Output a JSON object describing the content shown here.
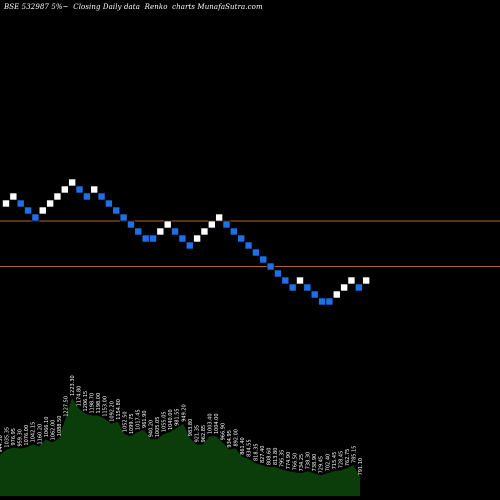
{
  "chart_data": {
    "type": "renko",
    "title": "BSE 532987 5%~  Closing Daily data  Renko  charts MunafaSutra.com",
    "colors": {
      "background": "#000000",
      "up_brick": "#ffffff",
      "down_brick": "#1f6fe8",
      "reference_line": "#b5652b",
      "volume_fill": "#0a3d0a",
      "volume_text": "#ffffff"
    },
    "bricks": [
      {
        "index": 0,
        "level": 0,
        "direction": "up"
      },
      {
        "index": 1,
        "level": 1,
        "direction": "up"
      },
      {
        "index": 2,
        "level": 0,
        "direction": "down"
      },
      {
        "index": 3,
        "level": -1,
        "direction": "down"
      },
      {
        "index": 4,
        "level": -2,
        "direction": "down"
      },
      {
        "index": 5,
        "level": -1,
        "direction": "up"
      },
      {
        "index": 6,
        "level": 0,
        "direction": "up"
      },
      {
        "index": 7,
        "level": 1,
        "direction": "up"
      },
      {
        "index": 8,
        "level": 2,
        "direction": "up"
      },
      {
        "index": 9,
        "level": 3,
        "direction": "up"
      },
      {
        "index": 10,
        "level": 2,
        "direction": "down"
      },
      {
        "index": 11,
        "level": 1,
        "direction": "down"
      },
      {
        "index": 12,
        "level": 2,
        "direction": "up"
      },
      {
        "index": 13,
        "level": 1,
        "direction": "down"
      },
      {
        "index": 14,
        "level": 0,
        "direction": "down"
      },
      {
        "index": 15,
        "level": -1,
        "direction": "down"
      },
      {
        "index": 16,
        "level": -2,
        "direction": "down"
      },
      {
        "index": 17,
        "level": -3,
        "direction": "down"
      },
      {
        "index": 18,
        "level": -4,
        "direction": "down"
      },
      {
        "index": 19,
        "level": -5,
        "direction": "down"
      },
      {
        "index": 20,
        "level": -5,
        "direction": "down"
      },
      {
        "index": 21,
        "level": -4,
        "direction": "up"
      },
      {
        "index": 22,
        "level": -3,
        "direction": "up"
      },
      {
        "index": 23,
        "level": -4,
        "direction": "down"
      },
      {
        "index": 24,
        "level": -5,
        "direction": "down"
      },
      {
        "index": 25,
        "level": -6,
        "direction": "down"
      },
      {
        "index": 26,
        "level": -5,
        "direction": "up"
      },
      {
        "index": 27,
        "level": -4,
        "direction": "up"
      },
      {
        "index": 28,
        "level": -3,
        "direction": "up"
      },
      {
        "index": 29,
        "level": -2,
        "direction": "up"
      },
      {
        "index": 30,
        "level": -3,
        "direction": "down"
      },
      {
        "index": 31,
        "level": -4,
        "direction": "down"
      },
      {
        "index": 32,
        "level": -5,
        "direction": "down"
      },
      {
        "index": 33,
        "level": -6,
        "direction": "down"
      },
      {
        "index": 34,
        "level": -7,
        "direction": "down"
      },
      {
        "index": 35,
        "level": -8,
        "direction": "down"
      },
      {
        "index": 36,
        "level": -9,
        "direction": "down"
      },
      {
        "index": 37,
        "level": -10,
        "direction": "down"
      },
      {
        "index": 38,
        "level": -11,
        "direction": "down"
      },
      {
        "index": 39,
        "level": -12,
        "direction": "down"
      },
      {
        "index": 40,
        "level": -11,
        "direction": "up"
      },
      {
        "index": 41,
        "level": -12,
        "direction": "down"
      },
      {
        "index": 42,
        "level": -13,
        "direction": "down"
      },
      {
        "index": 43,
        "level": -14,
        "direction": "down"
      },
      {
        "index": 44,
        "level": -14,
        "direction": "down"
      },
      {
        "index": 45,
        "level": -13,
        "direction": "up"
      },
      {
        "index": 46,
        "level": -12,
        "direction": "up"
      },
      {
        "index": 47,
        "level": -11,
        "direction": "up"
      },
      {
        "index": 48,
        "level": -12,
        "direction": "down"
      },
      {
        "index": 49,
        "level": -11,
        "direction": "up"
      }
    ],
    "reference_lines": [
      {
        "level": -2.5
      },
      {
        "level": -9
      }
    ],
    "volume": {
      "values": [
        40,
        45,
        47,
        46,
        47,
        50,
        48,
        55,
        52,
        56,
        75,
        95,
        85,
        80,
        78,
        78,
        75,
        70,
        72,
        60,
        58,
        62,
        64,
        55,
        55,
        60,
        62,
        66,
        70,
        56,
        50,
        50,
        58,
        58,
        52,
        45,
        46,
        38,
        36,
        32,
        30,
        28,
        28,
        26,
        24,
        23,
        22,
        24,
        22,
        20,
        22,
        24,
        25,
        27,
        30,
        18
      ],
      "labels": [
        "944.50",
        "1035.35",
        "976.95",
        "959.30",
        "1076.00",
        "1042.15",
        "1160.20",
        "1066.10",
        "1062.00",
        "1088.50",
        "1227.50",
        "1223.30",
        "1174.80",
        "1206.15",
        "1198.70",
        "1198.00",
        "1153.00",
        "1092.20",
        "1154.80",
        "1052.50",
        "1099.75",
        "1017.45",
        "961.90",
        "940.20",
        "1005.05",
        "1055.05",
        "1040.00",
        "981.55",
        "949.20",
        "983.80",
        "921.35",
        "962.85",
        "1003.40",
        "1004.00",
        "966.90",
        "934.95",
        "892.00",
        "861.40",
        "834.55",
        "818.35",
        "827.40",
        "808.60",
        "813.80",
        "795.35",
        "774.90",
        "766.50",
        "734.25",
        "738.30",
        "738.90",
        "729.45",
        "702.40",
        "715.45",
        "728.45",
        "762.75",
        "785.15",
        "791.10"
      ]
    }
  }
}
